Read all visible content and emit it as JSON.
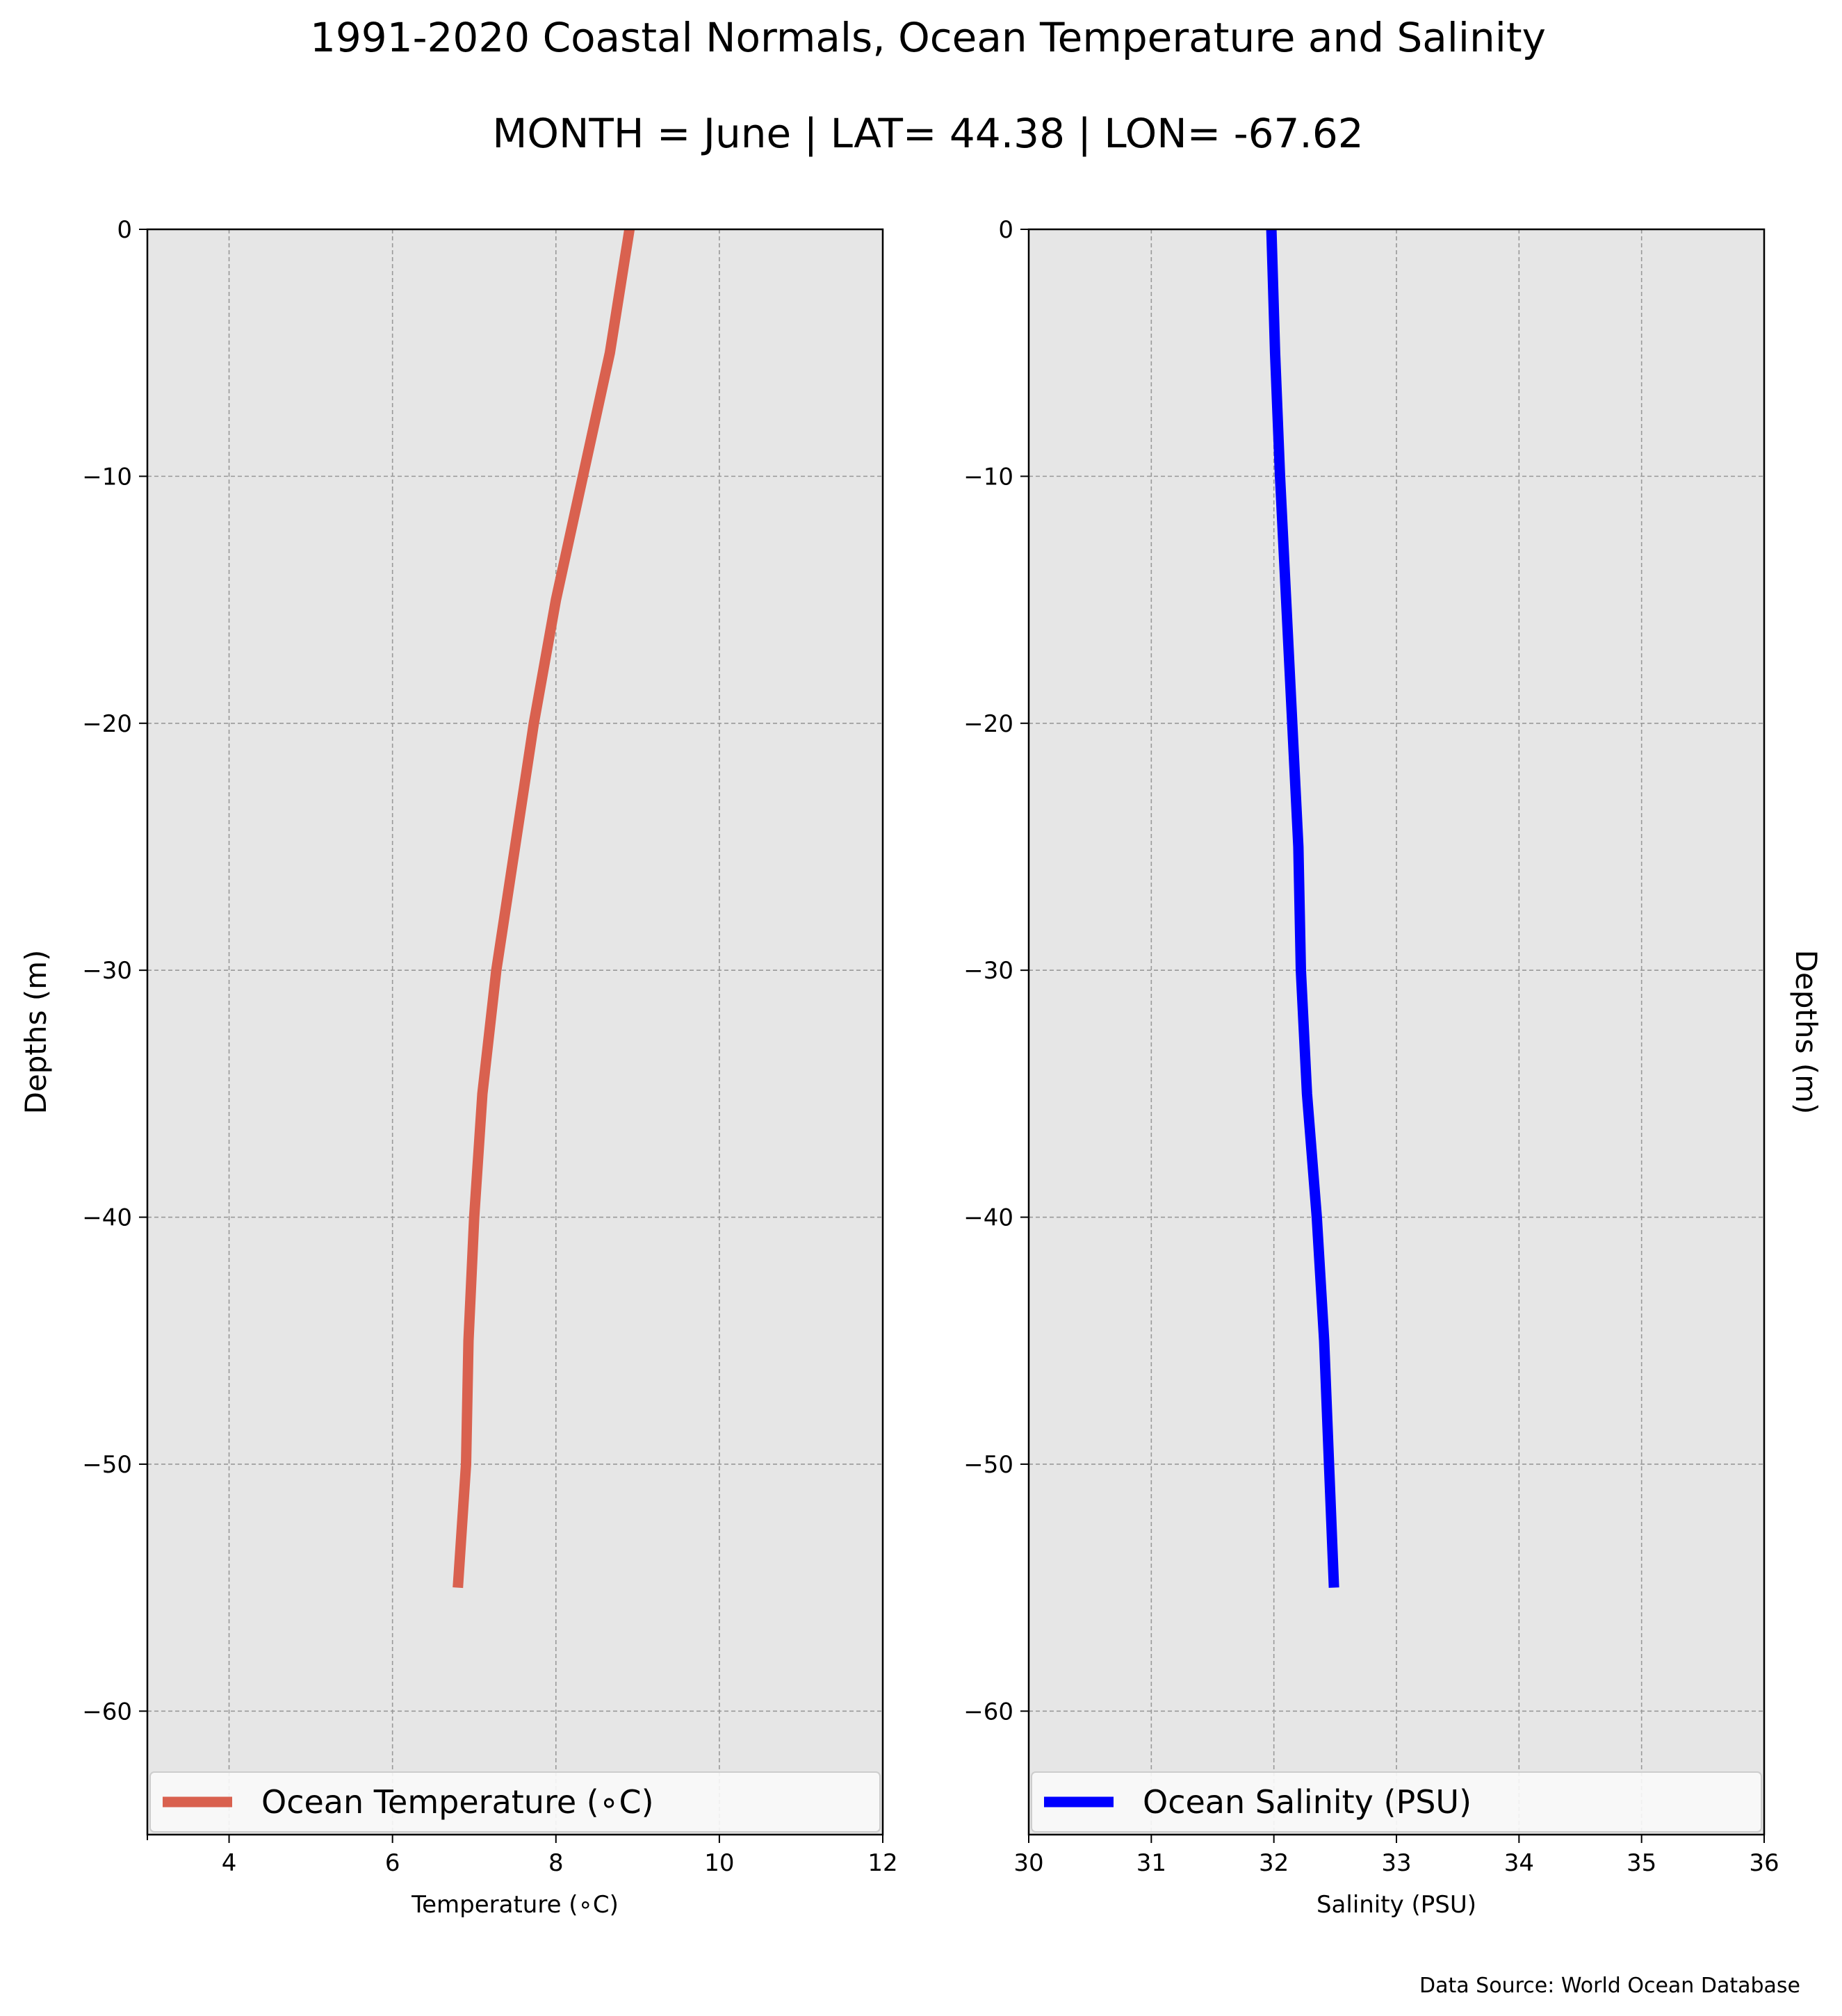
{
  "title": "1991-2020 Coastal Normals, Ocean Temperature and Salinity",
  "subtitle": "MONTH = June | LAT= 44.38 | LON= -67.62",
  "source_note": "Data Source: World Ocean Database",
  "colors": {
    "temperature": "#d9614f",
    "salinity": "#0000ff",
    "plot_background": "#e6e6e6",
    "grid": "#999999"
  },
  "chart_data": [
    {
      "type": "line",
      "xlabel": "Temperature (∘C)",
      "ylabel": "Depths (m)",
      "ylabel_side": "left",
      "xlim": [
        3,
        12
      ],
      "ylim": [
        -65,
        0
      ],
      "x_ticks": [
        4,
        6,
        8,
        10,
        12
      ],
      "x_tick_labels": [
        "4",
        "6",
        "8",
        "10",
        "12"
      ],
      "y_ticks": [
        0,
        -10,
        -20,
        -30,
        -40,
        -50,
        -60
      ],
      "y_tick_labels": [
        "0",
        "−10",
        "−20",
        "−30",
        "−40",
        "−50",
        "−60"
      ],
      "grid": true,
      "legend_position": "bottom",
      "series": [
        {
          "name": "Ocean Temperature (∘C)",
          "color": "#d9614f",
          "x": [
            8.9,
            8.66,
            8.33,
            8.0,
            7.73,
            7.5,
            7.27,
            7.1,
            7.0,
            6.93,
            6.9,
            6.8
          ],
          "y": [
            0,
            -5,
            -10,
            -15,
            -20,
            -25,
            -30,
            -35,
            -40,
            -45,
            -50,
            -55
          ]
        }
      ]
    },
    {
      "type": "line",
      "xlabel": "Salinity (PSU)",
      "ylabel": "Depths (m)",
      "ylabel_side": "right",
      "xlim": [
        30,
        36
      ],
      "ylim": [
        -65,
        0
      ],
      "x_ticks": [
        30,
        31,
        32,
        33,
        34,
        35,
        36
      ],
      "x_tick_labels": [
        "30",
        "31",
        "32",
        "33",
        "34",
        "35",
        "36"
      ],
      "y_ticks": [
        0,
        -10,
        -20,
        -30,
        -40,
        -50,
        -60
      ],
      "y_tick_labels": [
        "0",
        "−10",
        "−20",
        "−30",
        "−40",
        "−50",
        "−60"
      ],
      "grid": true,
      "legend_position": "bottom",
      "series": [
        {
          "name": "Ocean Salinity (PSU)",
          "color": "#0000ff",
          "x": [
            31.98,
            32.01,
            32.05,
            32.1,
            32.15,
            32.2,
            32.22,
            32.27,
            32.35,
            32.41,
            32.45,
            32.49
          ],
          "y": [
            0,
            -5,
            -10,
            -15,
            -20,
            -25,
            -30,
            -35,
            -40,
            -45,
            -50,
            -55
          ]
        }
      ]
    }
  ]
}
